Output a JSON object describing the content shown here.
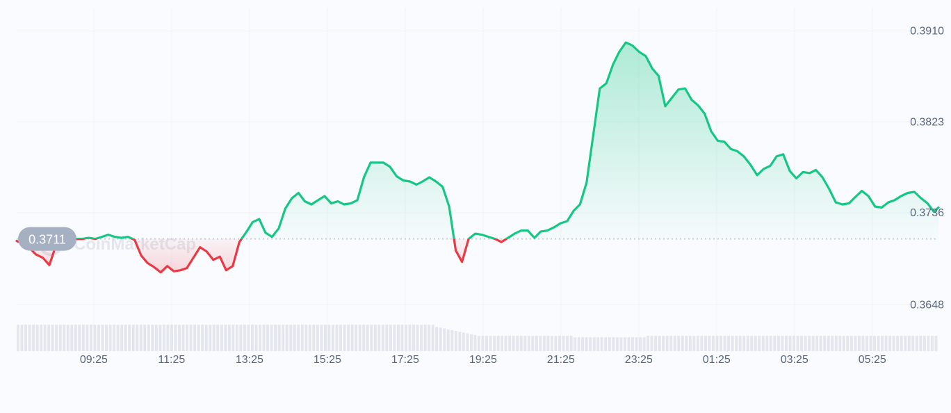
{
  "watermark": {
    "text": "CoinMarketCap"
  },
  "colors": {
    "up": "#16c784",
    "down": "#ea3943",
    "grid": "#eff2f5",
    "baseline": "#c7ccd6",
    "volume": "#e3e6ec",
    "badge": "#a6b0c3",
    "axis_text": "#58667e"
  },
  "chart_data": {
    "type": "line",
    "title": "",
    "xlabel": "",
    "ylabel": "",
    "baseline": {
      "label": "0.3711",
      "value": 0.3711
    },
    "y_ticks": [
      "0.3910",
      "0.3823",
      "0.3736",
      "0.3648"
    ],
    "y_tick_values": [
      0.391,
      0.3823,
      0.3736,
      0.3648
    ],
    "ylim": [
      0.3581,
      0.3927
    ],
    "x_ticks": [
      "09:25",
      "11:25",
      "13:25",
      "15:25",
      "17:25",
      "19:25",
      "21:25",
      "23:25",
      "01:25",
      "03:25",
      "05:25"
    ],
    "x_tick_positions": [
      1.0,
      3.0,
      5.0,
      7.0,
      9.0,
      11.0,
      13.0,
      15.0,
      17.0,
      19.0,
      21.0
    ],
    "xlim": [
      -0.98,
      22.7
    ],
    "grid": true,
    "series": [
      {
        "x": [
          -0.98,
          -0.81,
          -0.64,
          -0.48,
          -0.31,
          -0.14,
          0.03,
          0.2,
          0.37,
          0.53,
          0.7,
          0.87,
          1.04,
          1.21,
          1.37,
          1.54,
          1.71,
          1.88,
          2.05,
          2.22,
          2.38,
          2.55,
          2.72,
          2.89,
          3.06,
          3.23,
          3.39,
          3.56,
          3.73,
          3.9,
          4.07,
          4.24,
          4.4,
          4.57,
          4.74,
          4.91,
          5.08,
          5.25,
          5.41,
          5.58,
          5.75,
          5.92,
          6.09,
          6.26,
          6.42,
          6.59,
          6.76,
          6.93,
          7.1,
          7.27,
          7.43,
          7.6,
          7.77,
          7.94,
          8.11,
          8.28,
          8.44,
          8.61,
          8.78,
          8.95,
          9.12,
          9.29,
          9.45,
          9.62,
          9.79,
          9.96,
          10.13,
          10.3,
          10.46,
          10.63,
          10.8,
          10.97,
          11.14,
          11.31,
          11.47,
          11.64,
          11.81,
          11.98,
          12.15,
          12.32,
          12.48,
          12.65,
          12.82,
          12.99,
          13.16,
          13.33,
          13.49,
          13.66,
          13.83,
          14.0,
          14.17,
          14.34,
          14.5,
          14.67,
          14.84,
          15.01,
          15.18,
          15.35,
          15.51,
          15.68,
          15.85,
          16.02,
          16.19,
          16.36,
          16.52,
          16.69,
          16.86,
          17.03,
          17.2,
          17.37,
          17.53,
          17.7,
          17.87,
          18.04,
          18.21,
          18.38,
          18.54,
          18.71,
          18.88,
          19.05,
          19.22,
          19.39,
          19.55,
          19.72,
          19.89,
          20.06,
          20.23,
          20.4,
          20.56,
          20.73,
          20.9,
          21.07,
          21.24,
          21.41,
          21.57,
          21.74,
          21.91,
          22.08,
          22.25,
          22.42,
          22.58,
          22.7
        ],
        "y": [
          0.3709,
          0.3706,
          0.3702,
          0.3696,
          0.3693,
          0.3686,
          0.3705,
          0.3709,
          0.3711,
          0.3711,
          0.3711,
          0.3712,
          0.3711,
          0.3713,
          0.3715,
          0.3713,
          0.3712,
          0.3713,
          0.371,
          0.3695,
          0.3688,
          0.3684,
          0.3679,
          0.3685,
          0.368,
          0.3681,
          0.3683,
          0.3693,
          0.3703,
          0.3699,
          0.3691,
          0.3694,
          0.3681,
          0.3685,
          0.3708,
          0.3717,
          0.3727,
          0.373,
          0.3717,
          0.3713,
          0.3721,
          0.374,
          0.375,
          0.3755,
          0.3747,
          0.3744,
          0.3748,
          0.3752,
          0.3745,
          0.3747,
          0.3744,
          0.3745,
          0.3748,
          0.377,
          0.3784,
          0.3784,
          0.3784,
          0.378,
          0.3771,
          0.3767,
          0.3766,
          0.3763,
          0.3766,
          0.377,
          0.3766,
          0.3761,
          0.3742,
          0.37,
          0.3689,
          0.3711,
          0.3716,
          0.3715,
          0.3713,
          0.3711,
          0.3708,
          0.3712,
          0.3716,
          0.3719,
          0.3719,
          0.3712,
          0.3718,
          0.3719,
          0.3722,
          0.3726,
          0.3728,
          0.3738,
          0.3744,
          0.3765,
          0.381,
          0.3855,
          0.386,
          0.3878,
          0.389,
          0.3899,
          0.3896,
          0.389,
          0.3886,
          0.3874,
          0.3867,
          0.3838,
          0.3846,
          0.3854,
          0.3855,
          0.3844,
          0.3839,
          0.3831,
          0.3814,
          0.3805,
          0.3804,
          0.3797,
          0.3795,
          0.379,
          0.3782,
          0.3772,
          0.3778,
          0.3781,
          0.379,
          0.3792,
          0.3776,
          0.3769,
          0.3775,
          0.3774,
          0.3777,
          0.377,
          0.3759,
          0.3746,
          0.3744,
          0.3745,
          0.3751,
          0.3757,
          0.3752,
          0.3742,
          0.3741,
          0.3746,
          0.3748,
          0.3752,
          0.3755,
          0.3756,
          0.375,
          0.3745,
          0.3737,
          0.3741
        ]
      }
    ]
  }
}
